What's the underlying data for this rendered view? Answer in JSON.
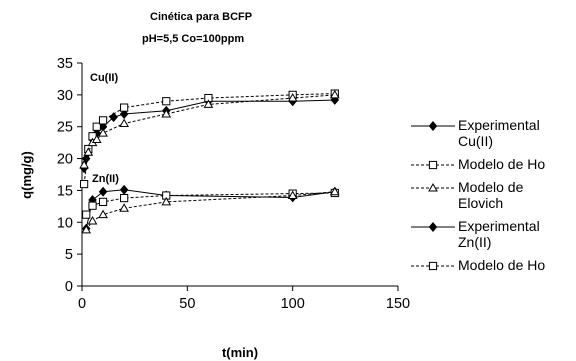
{
  "chart_data": {
    "type": "scatter",
    "title_lines": [
      "Cinética para BCFP",
      "pH=5,5    Co=100ppm"
    ],
    "xlabel": "t(min)",
    "ylabel": "q(mg/g)",
    "xlim": [
      0,
      150
    ],
    "ylim": [
      0,
      35
    ],
    "xticks": [
      0,
      50,
      100,
      150
    ],
    "yticks": [
      0,
      5,
      10,
      15,
      20,
      25,
      30,
      35
    ],
    "grid": false,
    "legend_position": "right",
    "annotations": [
      "Cu(II)",
      "Zn(II)"
    ],
    "series": [
      {
        "name": "Experimental Cu(II)",
        "marker": "diamond",
        "filled": true,
        "line": "solid",
        "color": "#000000",
        "legend_lines": [
          "Experimental",
          "Cu(II)"
        ],
        "x": [
          1,
          2,
          3,
          5,
          7,
          10,
          15,
          20,
          40,
          60,
          100,
          120
        ],
        "y": [
          18.5,
          20.0,
          21.0,
          23.0,
          24.0,
          25.0,
          26.5,
          27.0,
          27.5,
          29.0,
          29.0,
          29.2
        ]
      },
      {
        "name": "Modelo de Ho",
        "marker": "square",
        "filled": false,
        "line": "dashed",
        "color": "#000000",
        "legend_lines": [
          "Modelo de Ho"
        ],
        "x": [
          1,
          3,
          5,
          7,
          10,
          20,
          40,
          60,
          100,
          120
        ],
        "y": [
          16.0,
          21.5,
          23.5,
          25.0,
          26.0,
          28.0,
          29.0,
          29.5,
          30.0,
          30.2
        ]
      },
      {
        "name": "Modelo de Elovich",
        "marker": "triangle",
        "filled": false,
        "line": "dashed",
        "color": "#000000",
        "legend_lines": [
          "Modelo de",
          "Elovich"
        ],
        "x": [
          1,
          3,
          5,
          7,
          10,
          20,
          40,
          60,
          100,
          120
        ],
        "y": [
          19.0,
          21.0,
          22.5,
          23.0,
          24.0,
          25.5,
          27.0,
          28.5,
          29.5,
          30.0
        ]
      },
      {
        "name": "Experimental Zn(II)",
        "marker": "diamond",
        "filled": true,
        "line": "solid",
        "color": "#000000",
        "legend_lines": [
          "Experimental",
          "Zn(II)"
        ],
        "x": [
          2,
          5,
          10,
          20,
          40,
          100,
          120
        ],
        "y": [
          9.0,
          13.5,
          14.8,
          15.1,
          14.2,
          13.9,
          14.8
        ]
      },
      {
        "name": "Modelo de Ho",
        "marker": "square",
        "filled": false,
        "line": "dashed",
        "color": "#000000",
        "legend_lines": [
          "Modelo de Ho"
        ],
        "x": [
          2,
          5,
          10,
          20,
          40,
          100,
          120
        ],
        "y": [
          11.2,
          12.6,
          13.2,
          13.8,
          14.2,
          14.5,
          14.6
        ]
      },
      {
        "name": "Modelo de Elovich",
        "marker": "triangle",
        "filled": false,
        "line": "dashed",
        "color": "#000000",
        "legend_lines": [],
        "x": [
          2,
          5,
          10,
          20,
          40,
          100,
          120
        ],
        "y": [
          8.8,
          10.2,
          11.2,
          12.2,
          13.2,
          14.2,
          14.8
        ]
      }
    ]
  }
}
